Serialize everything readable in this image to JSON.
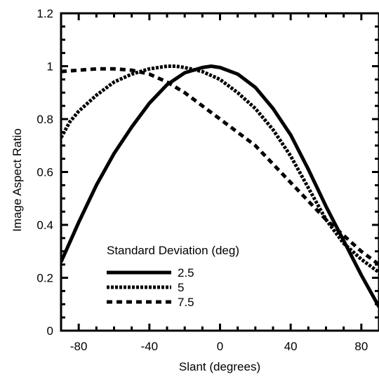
{
  "chart_data": {
    "type": "line",
    "title": "",
    "xlabel": "Slant (degrees)",
    "ylabel": "Image Aspect Ratio",
    "xlim": [
      -90,
      90
    ],
    "ylim": [
      0,
      1.2
    ],
    "xticks": [
      -80,
      -40,
      0,
      40,
      80
    ],
    "yticks": [
      0,
      0.2,
      0.4,
      0.6,
      0.8,
      1,
      1.2
    ],
    "grid": false,
    "legend": {
      "title": "Standard Deviation (deg)",
      "placement": "lower-left"
    },
    "series": [
      {
        "name": "2.5",
        "style": "solid",
        "color": "#000000",
        "x": [
          -90,
          -80,
          -70,
          -60,
          -50,
          -40,
          -30,
          -20,
          -10,
          -5,
          0,
          10,
          20,
          30,
          40,
          50,
          60,
          70,
          80,
          90
        ],
        "y": [
          0.26,
          0.41,
          0.55,
          0.67,
          0.77,
          0.86,
          0.93,
          0.975,
          0.995,
          1.0,
          0.995,
          0.97,
          0.92,
          0.84,
          0.74,
          0.61,
          0.47,
          0.34,
          0.21,
          0.09
        ]
      },
      {
        "name": "5",
        "style": "dense-dash",
        "color": "#000000",
        "x": [
          -90,
          -85,
          -80,
          -70,
          -60,
          -50,
          -40,
          -30,
          -25,
          -20,
          -10,
          0,
          10,
          20,
          30,
          40,
          50,
          60,
          70,
          80,
          90
        ],
        "y": [
          0.73,
          0.79,
          0.83,
          0.89,
          0.94,
          0.97,
          0.99,
          1.0,
          1.0,
          0.995,
          0.98,
          0.95,
          0.9,
          0.84,
          0.76,
          0.66,
          0.54,
          0.42,
          0.33,
          0.27,
          0.22
        ]
      },
      {
        "name": "7.5",
        "style": "sparse-dash",
        "color": "#000000",
        "x": [
          -90,
          -80,
          -70,
          -60,
          -50,
          -40,
          -30,
          -20,
          -10,
          0,
          10,
          20,
          30,
          40,
          50,
          60,
          70,
          80,
          90
        ],
        "y": [
          0.98,
          0.985,
          0.99,
          0.99,
          0.985,
          0.97,
          0.94,
          0.9,
          0.85,
          0.8,
          0.75,
          0.7,
          0.63,
          0.56,
          0.49,
          0.42,
          0.36,
          0.3,
          0.25
        ]
      }
    ]
  }
}
